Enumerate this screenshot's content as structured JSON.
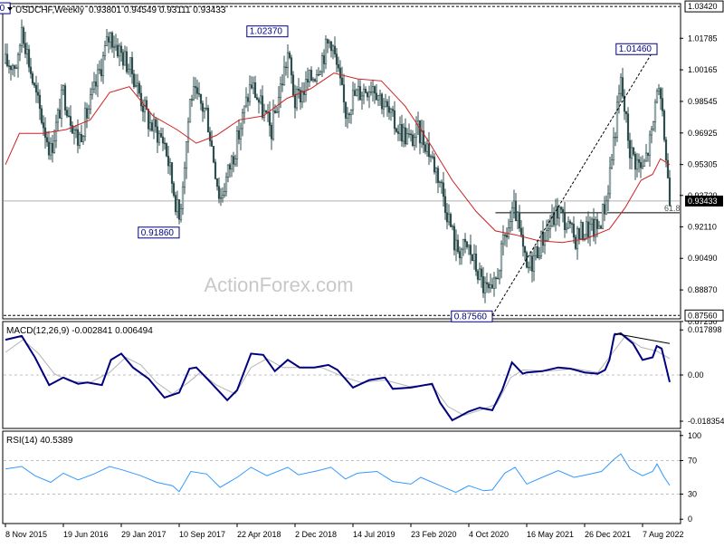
{
  "chart_data": {
    "type": "candlestick",
    "header": {
      "symbol": "USDCHF,Weekly",
      "ohlc": "0.93801 0.94549 0.93111 0.93433"
    },
    "watermark": "ActionForex.com",
    "price_panel": {
      "y_range": [
        0.8756,
        1.0342
      ],
      "y_ticks": [
        "1.01785",
        "1.00165",
        "0.98545",
        "0.96925",
        "0.95305",
        "0.93720",
        "0.92110",
        "0.90490",
        "0.88870",
        "0.87250"
      ],
      "current_price": 0.93433,
      "current_price_label": "0.93433",
      "top_line_label": "1.03420",
      "bottom_line_label": "0.87560",
      "fib_label": "61.8",
      "fib_level": 0.9283,
      "annotations": [
        {
          "label": "1.03420",
          "date": "2016-01-10",
          "price": 1.0342
        },
        {
          "label": "1.02370",
          "date": "2018-11-04",
          "price": 1.0237
        },
        {
          "label": "0.91860",
          "date": "2017-09-10",
          "price": 0.9186
        },
        {
          "label": "0.87560",
          "date": "2021-01-03",
          "price": 0.8756
        },
        {
          "label": "1.01460",
          "date": "2022-10-02",
          "price": 1.0146
        }
      ],
      "trendline": [
        [
          "2021-01-03",
          0.8756
        ],
        [
          "2022-10-02",
          1.0146
        ]
      ],
      "close_path": [
        [
          "2015-11-08",
          1.005
        ],
        [
          "2015-12-27",
          1.005
        ],
        [
          "2016-01-10",
          1.025
        ],
        [
          "2016-03-01",
          0.99
        ],
        [
          "2016-05-01",
          0.96
        ],
        [
          "2016-06-19",
          0.99
        ],
        [
          "2016-08-15",
          0.965
        ],
        [
          "2016-10-15",
          0.99
        ],
        [
          "2016-12-15",
          1.02
        ],
        [
          "2017-01-29",
          1.01
        ],
        [
          "2017-03-15",
          1.0
        ],
        [
          "2017-05-15",
          0.975
        ],
        [
          "2017-07-15",
          0.965
        ],
        [
          "2017-09-10",
          0.925
        ],
        [
          "2017-10-25",
          0.99
        ],
        [
          "2017-12-25",
          0.98
        ],
        [
          "2018-02-15",
          0.935
        ],
        [
          "2018-04-22",
          0.965
        ],
        [
          "2018-06-15",
          0.995
        ],
        [
          "2018-09-01",
          0.97
        ],
        [
          "2018-11-04",
          1.01
        ],
        [
          "2018-12-02",
          0.985
        ],
        [
          "2019-02-15",
          1.0
        ],
        [
          "2019-04-20",
          1.018
        ],
        [
          "2019-06-15",
          0.98
        ],
        [
          "2019-07-14",
          0.988
        ],
        [
          "2019-10-01",
          0.995
        ],
        [
          "2019-12-15",
          0.975
        ],
        [
          "2020-02-23",
          0.965
        ],
        [
          "2020-03-20",
          0.97
        ],
        [
          "2020-04-20",
          0.965
        ],
        [
          "2020-06-15",
          0.945
        ],
        [
          "2020-08-15",
          0.91
        ],
        [
          "2020-10-04",
          0.91
        ],
        [
          "2020-12-01",
          0.89
        ],
        [
          "2021-01-03",
          0.885
        ],
        [
          "2021-02-20",
          0.915
        ],
        [
          "2021-04-01",
          0.93
        ],
        [
          "2021-05-16",
          0.898
        ],
        [
          "2021-07-15",
          0.915
        ],
        [
          "2021-09-15",
          0.93
        ],
        [
          "2021-11-15",
          0.915
        ],
        [
          "2021-12-26",
          0.92
        ],
        [
          "2022-02-15",
          0.92
        ],
        [
          "2022-03-20",
          0.935
        ],
        [
          "2022-05-15",
          0.995
        ],
        [
          "2022-06-20",
          0.96
        ],
        [
          "2022-08-07",
          0.95
        ],
        [
          "2022-09-15",
          0.97
        ],
        [
          "2022-10-02",
          0.995
        ],
        [
          "2022-10-30",
          0.968
        ],
        [
          "2022-11-20",
          0.9343
        ]
      ],
      "ma_path": [
        [
          "2015-11-08",
          0.953
        ],
        [
          "2016-01-01",
          0.969
        ],
        [
          "2016-04-01",
          0.969
        ],
        [
          "2016-07-01",
          0.971
        ],
        [
          "2016-10-01",
          0.976
        ],
        [
          "2016-12-15",
          0.99
        ],
        [
          "2017-03-01",
          0.993
        ],
        [
          "2017-06-01",
          0.978
        ],
        [
          "2017-09-01",
          0.971
        ],
        [
          "2017-11-15",
          0.964
        ],
        [
          "2018-02-01",
          0.968
        ],
        [
          "2018-05-01",
          0.976
        ],
        [
          "2018-08-01",
          0.978
        ],
        [
          "2018-11-01",
          0.987
        ],
        [
          "2019-02-01",
          0.992
        ],
        [
          "2019-05-01",
          1.0
        ],
        [
          "2019-08-01",
          0.997
        ],
        [
          "2019-11-01",
          0.996
        ],
        [
          "2020-02-01",
          0.983
        ],
        [
          "2020-05-01",
          0.965
        ],
        [
          "2020-08-01",
          0.945
        ],
        [
          "2020-11-01",
          0.929
        ],
        [
          "2021-01-15",
          0.919
        ],
        [
          "2021-04-01",
          0.917
        ],
        [
          "2021-07-01",
          0.914
        ],
        [
          "2021-10-01",
          0.913
        ],
        [
          "2022-01-01",
          0.915
        ],
        [
          "2022-04-01",
          0.92
        ],
        [
          "2022-06-01",
          0.931
        ],
        [
          "2022-08-01",
          0.945
        ],
        [
          "2022-09-15",
          0.948
        ],
        [
          "2022-10-15",
          0.956
        ],
        [
          "2022-11-20",
          0.953
        ]
      ]
    },
    "macd_panel": {
      "label": "MACD(12,26,9) -0.002841 0.006494",
      "y_range": [
        -0.0205,
        0.0205
      ],
      "y_ticks": [
        "0.017898",
        "0.00",
        "-0.018354"
      ],
      "macd_path": [
        [
          "2015-11-08",
          0.014
        ],
        [
          "2016-01-10",
          0.0155
        ],
        [
          "2016-03-01",
          0.007
        ],
        [
          "2016-04-25",
          -0.004
        ],
        [
          "2016-06-19",
          -0.001
        ],
        [
          "2016-08-15",
          -0.0035
        ],
        [
          "2016-09-20",
          -0.003
        ],
        [
          "2016-11-15",
          -0.004
        ],
        [
          "2016-12-20",
          0.006
        ],
        [
          "2017-01-29",
          0.0085
        ],
        [
          "2017-03-15",
          0.003
        ],
        [
          "2017-05-15",
          -0.0015
        ],
        [
          "2017-07-15",
          -0.009
        ],
        [
          "2017-09-10",
          -0.007
        ],
        [
          "2017-10-20",
          0.0025
        ],
        [
          "2017-11-15",
          0.003
        ],
        [
          "2018-01-01",
          -0.002
        ],
        [
          "2018-03-15",
          -0.01
        ],
        [
          "2018-04-22",
          -0.006
        ],
        [
          "2018-06-15",
          0.0085
        ],
        [
          "2018-08-01",
          0.008
        ],
        [
          "2018-09-15",
          0.0015
        ],
        [
          "2018-11-04",
          0.006
        ],
        [
          "2018-12-20",
          0.003
        ],
        [
          "2019-02-15",
          0.003
        ],
        [
          "2019-04-10",
          0.004
        ],
        [
          "2019-05-15",
          0.002
        ],
        [
          "2019-07-14",
          -0.005
        ],
        [
          "2019-09-15",
          -0.002
        ],
        [
          "2019-11-15",
          -0.001
        ],
        [
          "2019-12-15",
          -0.0055
        ],
        [
          "2020-02-23",
          -0.005
        ],
        [
          "2020-05-15",
          -0.0035
        ],
        [
          "2020-06-15",
          -0.011
        ],
        [
          "2020-08-01",
          -0.018
        ],
        [
          "2020-10-04",
          -0.0145
        ],
        [
          "2020-11-15",
          -0.013
        ],
        [
          "2021-01-03",
          -0.014
        ],
        [
          "2021-02-10",
          -0.006
        ],
        [
          "2021-03-20",
          0.005
        ],
        [
          "2021-05-01",
          0.0005
        ],
        [
          "2021-05-16",
          0.001
        ],
        [
          "2021-07-15",
          0.0015
        ],
        [
          "2021-09-15",
          0.003
        ],
        [
          "2021-11-01",
          0.0025
        ],
        [
          "2021-12-26",
          0.001
        ],
        [
          "2022-02-15",
          0.0005
        ],
        [
          "2022-03-15",
          0.002
        ],
        [
          "2022-04-01",
          0.006
        ],
        [
          "2022-04-20",
          0.016
        ],
        [
          "2022-05-15",
          0.0165
        ],
        [
          "2022-07-01",
          0.0125
        ],
        [
          "2022-08-07",
          0.006
        ],
        [
          "2022-09-15",
          0.007
        ],
        [
          "2022-10-01",
          0.0115
        ],
        [
          "2022-10-20",
          0.0105
        ],
        [
          "2022-11-20",
          -0.0028
        ]
      ],
      "signal_path": [
        [
          "2015-11-08",
          0.009
        ],
        [
          "2016-01-15",
          0.014
        ],
        [
          "2016-03-15",
          0.0085
        ],
        [
          "2016-05-15",
          0.0005
        ],
        [
          "2016-07-15",
          -0.0025
        ],
        [
          "2016-10-01",
          -0.003
        ],
        [
          "2016-12-15",
          0.001
        ],
        [
          "2017-02-15",
          0.007
        ],
        [
          "2017-04-15",
          0.004
        ],
        [
          "2017-06-15",
          -0.003
        ],
        [
          "2017-08-15",
          -0.0075
        ],
        [
          "2017-10-15",
          -0.003
        ],
        [
          "2017-12-01",
          0.001
        ],
        [
          "2018-02-01",
          -0.004
        ],
        [
          "2018-04-15",
          -0.0075
        ],
        [
          "2018-06-15",
          0.003
        ],
        [
          "2018-08-15",
          0.0065
        ],
        [
          "2018-10-15",
          0.003
        ],
        [
          "2018-12-15",
          0.003
        ],
        [
          "2019-03-15",
          0.003
        ],
        [
          "2019-06-15",
          -0.001
        ],
        [
          "2019-08-15",
          -0.003
        ],
        [
          "2019-11-15",
          -0.002
        ],
        [
          "2020-02-15",
          -0.0045
        ],
        [
          "2020-05-15",
          -0.004
        ],
        [
          "2020-07-15",
          -0.0125
        ],
        [
          "2020-09-15",
          -0.016
        ],
        [
          "2020-12-01",
          -0.0135
        ],
        [
          "2021-01-20",
          -0.0115
        ],
        [
          "2021-03-15",
          -0.001
        ],
        [
          "2021-05-01",
          0.002
        ],
        [
          "2021-08-01",
          0.0015
        ],
        [
          "2021-11-15",
          0.0025
        ],
        [
          "2022-02-15",
          0.001
        ],
        [
          "2022-04-15",
          0.009
        ],
        [
          "2022-06-01",
          0.0155
        ],
        [
          "2022-08-01",
          0.011
        ],
        [
          "2022-10-01",
          0.0095
        ],
        [
          "2022-11-20",
          0.0065
        ]
      ],
      "divergence_line": [
        [
          "2022-04-20",
          0.0165
        ],
        [
          "2022-11-20",
          0.0125
        ]
      ]
    },
    "rsi_panel": {
      "label": "RSI(14) 40.5389",
      "y_range": [
        0,
        100
      ],
      "y_ticks": [
        "100",
        "70",
        "30",
        "0"
      ],
      "levels": [
        70,
        30
      ],
      "rsi_path": [
        [
          "2015-11-08",
          60
        ],
        [
          "2016-01-10",
          63
        ],
        [
          "2016-03-01",
          52
        ],
        [
          "2016-05-01",
          44
        ],
        [
          "2016-06-19",
          55
        ],
        [
          "2016-08-15",
          47
        ],
        [
          "2016-10-15",
          54
        ],
        [
          "2016-12-15",
          63
        ],
        [
          "2017-02-01",
          59
        ],
        [
          "2017-04-15",
          52
        ],
        [
          "2017-06-15",
          44
        ],
        [
          "2017-08-15",
          40
        ],
        [
          "2017-09-10",
          33
        ],
        [
          "2017-10-25",
          57
        ],
        [
          "2017-12-25",
          54
        ],
        [
          "2018-02-15",
          38
        ],
        [
          "2018-04-22",
          50
        ],
        [
          "2018-06-15",
          62
        ],
        [
          "2018-08-15",
          52
        ],
        [
          "2018-11-04",
          62
        ],
        [
          "2018-12-15",
          53
        ],
        [
          "2019-03-01",
          58
        ],
        [
          "2019-04-20",
          62
        ],
        [
          "2019-06-15",
          48
        ],
        [
          "2019-08-01",
          55
        ],
        [
          "2019-10-15",
          57
        ],
        [
          "2019-12-15",
          45
        ],
        [
          "2020-02-23",
          42
        ],
        [
          "2020-04-01",
          50
        ],
        [
          "2020-06-15",
          40
        ],
        [
          "2020-08-15",
          32
        ],
        [
          "2020-10-04",
          40
        ],
        [
          "2020-12-01",
          34
        ],
        [
          "2021-01-03",
          35
        ],
        [
          "2021-02-20",
          55
        ],
        [
          "2021-04-01",
          62
        ],
        [
          "2021-05-16",
          42
        ],
        [
          "2021-07-15",
          50
        ],
        [
          "2021-09-15",
          58
        ],
        [
          "2021-11-15",
          50
        ],
        [
          "2022-01-01",
          53
        ],
        [
          "2022-03-01",
          57
        ],
        [
          "2022-04-20",
          72
        ],
        [
          "2022-05-15",
          78
        ],
        [
          "2022-06-20",
          60
        ],
        [
          "2022-08-07",
          52
        ],
        [
          "2022-09-15",
          57
        ],
        [
          "2022-10-02",
          66
        ],
        [
          "2022-10-30",
          50
        ],
        [
          "2022-11-20",
          40.5
        ]
      ]
    },
    "x_axis": {
      "ticks": [
        {
          "label": "8 Nov 2015",
          "date": "2015-11-08"
        },
        {
          "label": "19 Jun 2016",
          "date": "2016-06-19"
        },
        {
          "label": "29 Jan 2017",
          "date": "2017-01-29"
        },
        {
          "label": "10 Sep 2017",
          "date": "2017-09-10"
        },
        {
          "label": "22 Apr 2018",
          "date": "2018-04-22"
        },
        {
          "label": "2 Dec 2018",
          "date": "2018-12-02"
        },
        {
          "label": "14 Jul 2019",
          "date": "2019-07-14"
        },
        {
          "label": "23 Feb 2020",
          "date": "2020-02-23"
        },
        {
          "label": "4 Oct 2020",
          "date": "2020-10-04"
        },
        {
          "label": "16 May 2021",
          "date": "2021-05-16"
        },
        {
          "label": "26 Dec 2021",
          "date": "2021-12-26"
        },
        {
          "label": "7 Aug 2022",
          "date": "2022-08-07"
        }
      ]
    },
    "colors": {
      "candle": "#2f4f4f",
      "ma": "#d02020",
      "macd": "#000080",
      "signal": "#b4b4b4",
      "rsi": "#3399ff",
      "label_box_border": "#000080",
      "current_box": "#000000"
    }
  }
}
